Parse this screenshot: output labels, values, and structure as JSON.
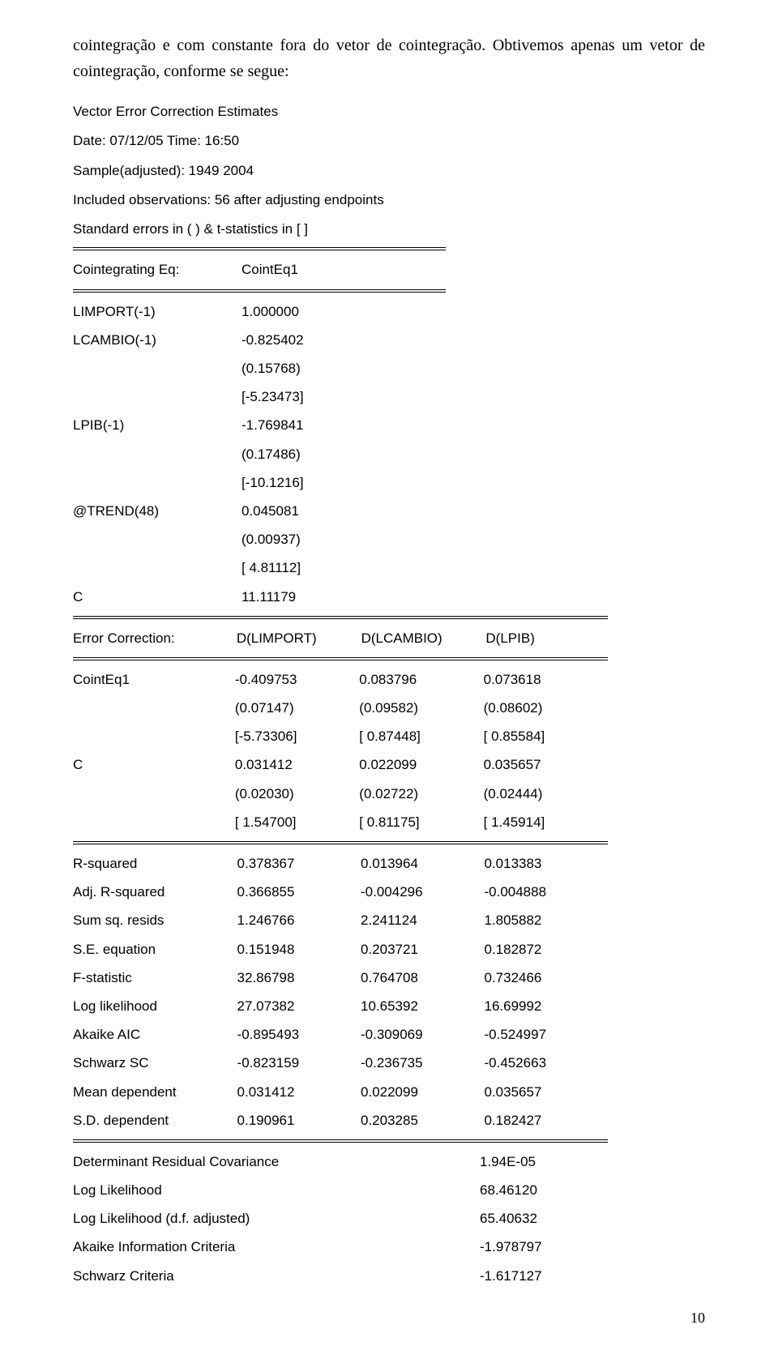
{
  "intro_text": "cointegração e com constante fora do vetor de cointegração. Obtivemos apenas um vetor de cointegração, conforme se segue:",
  "header": {
    "title": "Vector Error Correction Estimates",
    "date_line": "Date: 07/12/05   Time: 16:50",
    "sample_line": "Sample(adjusted): 1949 2004",
    "obs_line": "Included observations: 56 after adjusting endpoints",
    "stderr_line": "Standard errors in ( ) & t-statistics in [ ]"
  },
  "cointeq": {
    "label": "Cointegrating Eq:",
    "col": "CointEq1",
    "rows": [
      {
        "name": "LIMPORT(-1)",
        "vals": [
          "1.000000"
        ]
      },
      {
        "name": "LCAMBIO(-1)",
        "vals": [
          "-0.825402",
          "(0.15768)",
          "[-5.23473]"
        ]
      },
      {
        "name": "LPIB(-1)",
        "vals": [
          "-1.769841",
          "(0.17486)",
          "[-10.1216]"
        ]
      },
      {
        "name": "@TREND(48)",
        "vals": [
          "0.045081",
          "(0.00937)",
          "[ 4.81112]"
        ]
      },
      {
        "name": "C",
        "vals": [
          "11.11179"
        ]
      }
    ]
  },
  "errcorr": {
    "label": "Error Correction:",
    "cols": [
      "D(LIMPORT)",
      "D(LCAMBIO)",
      "D(LPIB)"
    ],
    "rows": [
      {
        "name": "CointEq1",
        "triples": [
          [
            "-0.409753",
            "0.083796",
            "0.073618"
          ],
          [
            "(0.07147)",
            "(0.09582)",
            "(0.08602)"
          ],
          [
            "[-5.73306]",
            "[ 0.87448]",
            "[ 0.85584]"
          ]
        ]
      },
      {
        "name": "C",
        "triples": [
          [
            "0.031412",
            "0.022099",
            "0.035657"
          ],
          [
            "(0.02030)",
            "(0.02722)",
            "(0.02444)"
          ],
          [
            "[ 1.54700]",
            "[ 0.81175]",
            "[ 1.45914]"
          ]
        ]
      }
    ]
  },
  "stats": [
    {
      "name": "R-squared",
      "v": [
        "0.378367",
        "0.013964",
        "0.013383"
      ]
    },
    {
      "name": "Adj. R-squared",
      "v": [
        "0.366855",
        "-0.004296",
        "-0.004888"
      ]
    },
    {
      "name": "Sum sq. resids",
      "v": [
        "1.246766",
        "2.241124",
        "1.805882"
      ]
    },
    {
      "name": "S.E. equation",
      "v": [
        "0.151948",
        "0.203721",
        "0.182872"
      ]
    },
    {
      "name": "F-statistic",
      "v": [
        "32.86798",
        "0.764708",
        "0.732466"
      ]
    },
    {
      "name": "Log likelihood",
      "v": [
        "27.07382",
        "10.65392",
        "16.69992"
      ]
    },
    {
      "name": "Akaike AIC",
      "v": [
        "-0.895493",
        "-0.309069",
        "-0.524997"
      ]
    },
    {
      "name": "Schwarz SC",
      "v": [
        "-0.823159",
        "-0.236735",
        "-0.452663"
      ]
    },
    {
      "name": "Mean dependent",
      "v": [
        "0.031412",
        "0.022099",
        "0.035657"
      ]
    },
    {
      "name": "S.D. dependent",
      "v": [
        "0.190961",
        "0.203285",
        "0.182427"
      ]
    }
  ],
  "footer": [
    {
      "name": "Determinant Residual Covariance",
      "v": "1.94E-05"
    },
    {
      "name": "Log Likelihood",
      "v": "68.46120"
    },
    {
      "name": "Log Likelihood (d.f. adjusted)",
      "v": "65.40632"
    },
    {
      "name": "Akaike Information Criteria",
      "v": "-1.978797"
    },
    {
      "name": "Schwarz Criteria",
      "v": "-1.617127"
    }
  ],
  "pagenum": "10"
}
